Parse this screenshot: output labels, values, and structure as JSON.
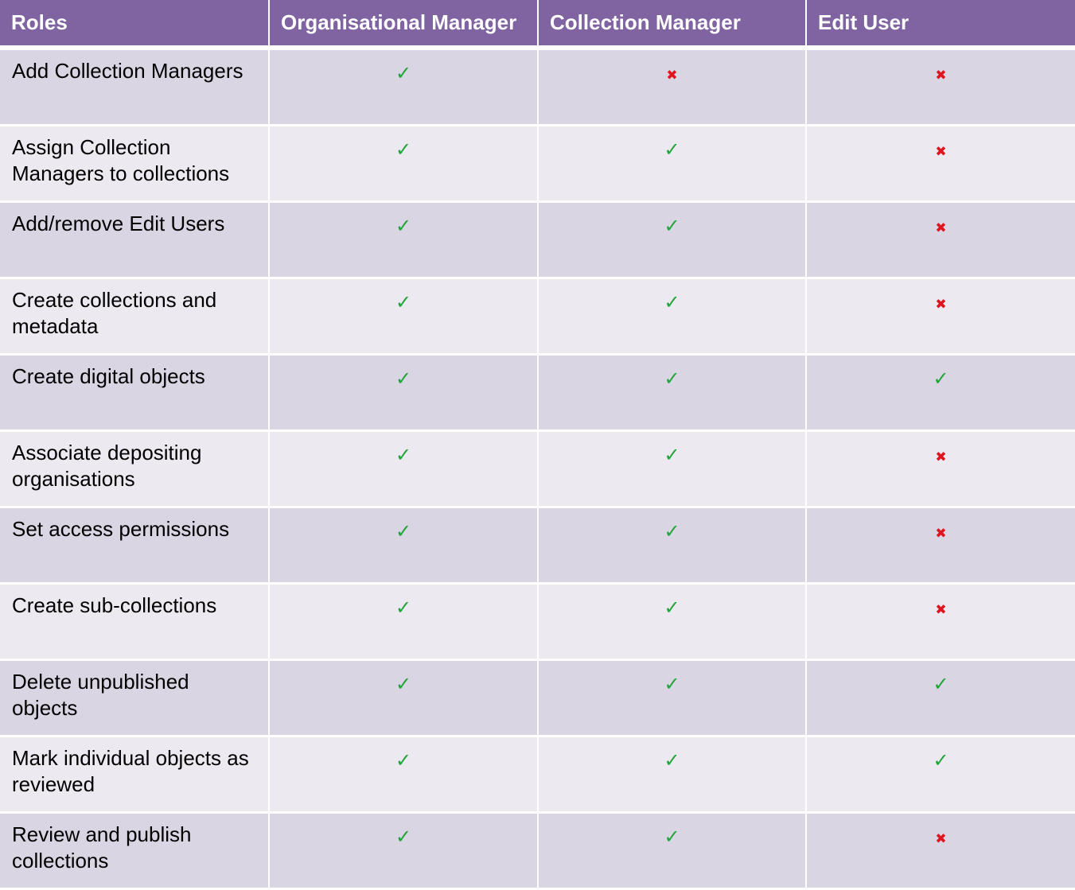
{
  "headers": {
    "roles": "Roles",
    "org_manager": "Organisational Manager",
    "collection_manager": "Collection Manager",
    "edit_user": "Edit User"
  },
  "symbols": {
    "yes": "✓",
    "no": "✖"
  },
  "colors": {
    "header_bg": "#8064a2",
    "row_dark": "#d9d5e3",
    "row_light": "#ece9f0",
    "check": "#1fa538",
    "cross": "#e0141e"
  },
  "rows": [
    {
      "label": "Add Collection Managers",
      "org": "yes",
      "col": "no",
      "edit": "no"
    },
    {
      "label": "Assign Collection Managers to collections",
      "org": "yes",
      "col": "yes",
      "edit": "no"
    },
    {
      "label": "Add/remove Edit Users",
      "org": "yes",
      "col": "yes",
      "edit": "no"
    },
    {
      "label": "Create collections and metadata",
      "org": "yes",
      "col": "yes",
      "edit": "no"
    },
    {
      "label": "Create digital objects",
      "org": "yes",
      "col": "yes",
      "edit": "yes"
    },
    {
      "label": "Associate depositing organisations",
      "org": "yes",
      "col": "yes",
      "edit": "no"
    },
    {
      "label": "Set access permissions",
      "org": "yes",
      "col": "yes",
      "edit": "no"
    },
    {
      "label": "Create sub-collections",
      "org": "yes",
      "col": "yes",
      "edit": "no"
    },
    {
      "label": "Delete unpublished objects",
      "org": "yes",
      "col": "yes",
      "edit": "yes"
    },
    {
      "label": "Mark individual objects as reviewed",
      "org": "yes",
      "col": "yes",
      "edit": "yes"
    },
    {
      "label": "Review and publish collections",
      "org": "yes",
      "col": "yes",
      "edit": "no"
    }
  ]
}
